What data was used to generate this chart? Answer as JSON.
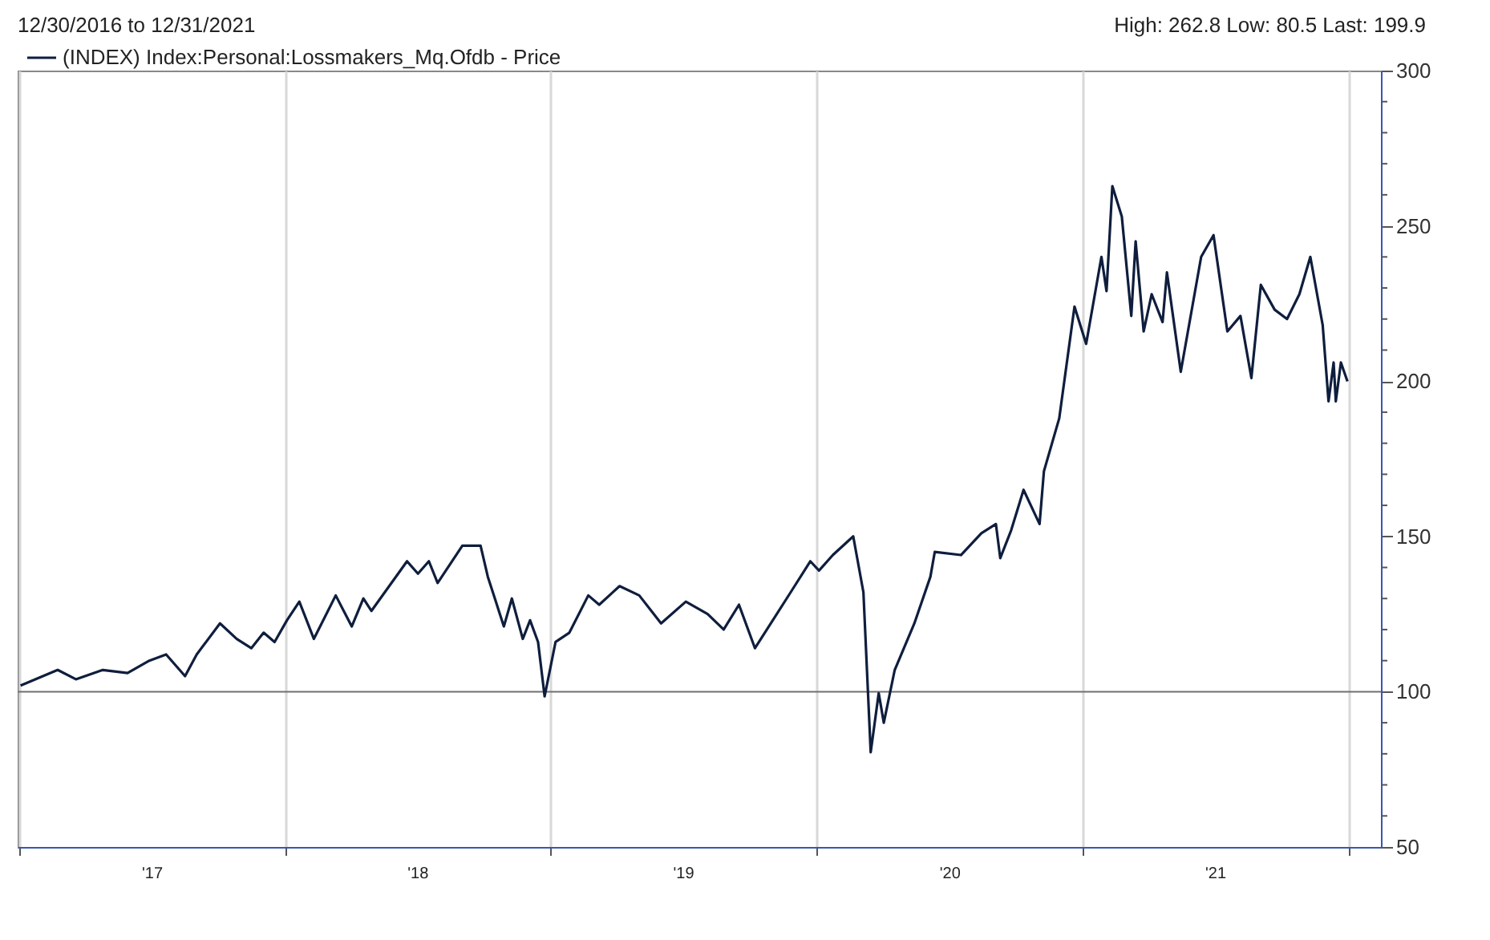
{
  "chart_data": {
    "type": "line",
    "title": "12/30/2016 to 12/31/2021",
    "annotations": [
      "High: 262.8 Low: 80.5 Last: 199.9"
    ],
    "x": [
      "2017-01-03",
      "2017-02-23",
      "2017-03-20",
      "2017-04-26",
      "2017-05-30",
      "2017-06-29",
      "2017-07-22",
      "2017-08-17",
      "2017-09-02",
      "2017-10-04",
      "2017-10-27",
      "2017-11-16",
      "2017-12-03",
      "2017-12-18",
      "2018-01-04",
      "2018-01-21",
      "2018-02-10",
      "2018-03-12",
      "2018-04-03",
      "2018-04-19",
      "2018-04-30",
      "2018-06-18",
      "2018-07-03",
      "2018-07-18",
      "2018-07-30",
      "2018-09-02",
      "2018-09-27",
      "2018-10-07",
      "2018-10-18",
      "2018-10-29",
      "2018-11-09",
      "2018-11-24",
      "2018-12-04",
      "2018-12-15",
      "2018-12-24",
      "2019-01-08",
      "2019-01-27",
      "2019-02-22",
      "2019-03-09",
      "2019-04-06",
      "2019-05-03",
      "2019-06-02",
      "2019-07-06",
      "2019-08-05",
      "2019-08-27",
      "2019-09-17",
      "2019-10-09",
      "2019-11-27",
      "2019-12-24",
      "2020-01-05",
      "2020-01-24",
      "2020-02-21",
      "2020-03-06",
      "2020-03-16",
      "2020-03-27",
      "2020-04-03",
      "2020-04-18",
      "2020-05-15",
      "2020-06-06",
      "2020-06-12",
      "2020-07-18",
      "2020-08-15",
      "2020-09-04",
      "2020-09-10",
      "2020-09-25",
      "2020-10-12",
      "2020-11-03",
      "2020-11-09",
      "2020-11-30",
      "2020-12-21",
      "2021-01-06",
      "2021-01-27",
      "2021-02-03",
      "2021-02-11",
      "2021-02-24",
      "2021-03-09",
      "2021-03-15",
      "2021-03-26",
      "2021-04-06",
      "2021-04-21",
      "2021-04-27",
      "2021-05-16",
      "2021-06-13",
      "2021-06-30",
      "2021-07-19",
      "2021-08-06",
      "2021-08-21",
      "2021-09-03",
      "2021-09-22",
      "2021-10-09",
      "2021-10-26",
      "2021-11-10",
      "2021-11-27",
      "2021-12-05",
      "2021-12-12",
      "2021-12-15",
      "2021-12-22",
      "2021-12-31"
    ],
    "series": [
      {
        "name": "(INDEX) Index:Personal:Lossmakers_Mq.Ofdb - Price",
        "color": "#0f1e3d",
        "values": [
          102,
          107,
          104,
          107,
          106,
          110,
          112,
          105,
          112,
          122,
          117,
          114,
          119,
          116,
          123,
          129,
          117,
          131,
          121,
          130,
          126,
          142,
          138,
          142,
          135,
          147,
          147,
          137,
          129,
          121,
          130,
          117,
          123,
          116,
          98.5,
          116,
          119,
          131,
          128,
          134,
          131,
          122,
          129,
          125,
          120,
          128,
          114,
          132,
          142,
          139,
          144,
          150,
          132,
          80.5,
          99.5,
          90,
          107,
          122,
          137,
          145,
          144,
          151,
          154,
          143,
          152,
          165,
          154,
          171,
          188,
          224,
          212,
          240,
          229,
          262.8,
          253,
          221,
          245,
          216,
          228,
          219,
          235,
          203,
          240,
          247,
          216,
          221,
          201,
          231,
          223,
          220,
          228,
          240,
          218,
          193.5,
          206,
          193.5,
          206,
          199.9
        ]
      }
    ],
    "xlim": [
      "2016-12-30",
      "2022-02-15"
    ],
    "xticks": [
      {
        "value": "2017-01-01",
        "label": null
      },
      {
        "value": "2017-07-02",
        "label": "'17"
      },
      {
        "value": "2018-01-01",
        "label": null
      },
      {
        "value": "2018-07-02",
        "label": "'18"
      },
      {
        "value": "2019-01-01",
        "label": null
      },
      {
        "value": "2019-07-02",
        "label": "'19"
      },
      {
        "value": "2020-01-01",
        "label": null
      },
      {
        "value": "2020-07-02",
        "label": "'20"
      },
      {
        "value": "2021-01-01",
        "label": null
      },
      {
        "value": "2021-07-02",
        "label": "'21"
      },
      {
        "value": "2022-01-01",
        "label": null
      }
    ],
    "ylim": [
      50,
      300
    ],
    "yticks": [
      50,
      {
        "value": 60,
        "label": null
      },
      {
        "value": 70,
        "label": null
      },
      {
        "value": 80,
        "label": null
      },
      {
        "value": 90,
        "label": null
      },
      100,
      {
        "value": 110,
        "label": null
      },
      {
        "value": 120,
        "label": null
      },
      {
        "value": 130,
        "label": null
      },
      {
        "value": 140,
        "label": null
      },
      150,
      {
        "value": 160,
        "label": null
      },
      {
        "value": 170,
        "label": null
      },
      {
        "value": 180,
        "label": null
      },
      {
        "value": 190,
        "label": null
      },
      200,
      {
        "value": 210,
        "label": null
      },
      {
        "value": 220,
        "label": null
      },
      {
        "value": 230,
        "label": null
      },
      {
        "value": 240,
        "label": null
      },
      250,
      {
        "value": 260,
        "label": null
      },
      {
        "value": 270,
        "label": null
      },
      {
        "value": 280,
        "label": null
      },
      {
        "value": 290,
        "label": null
      },
      300
    ],
    "ref_lines": [
      {
        "axis": "y",
        "value": 100,
        "label": null,
        "color": "#707070"
      }
    ],
    "grid": "x",
    "legend": "top left",
    "line_style": "solid",
    "marker": "none"
  }
}
